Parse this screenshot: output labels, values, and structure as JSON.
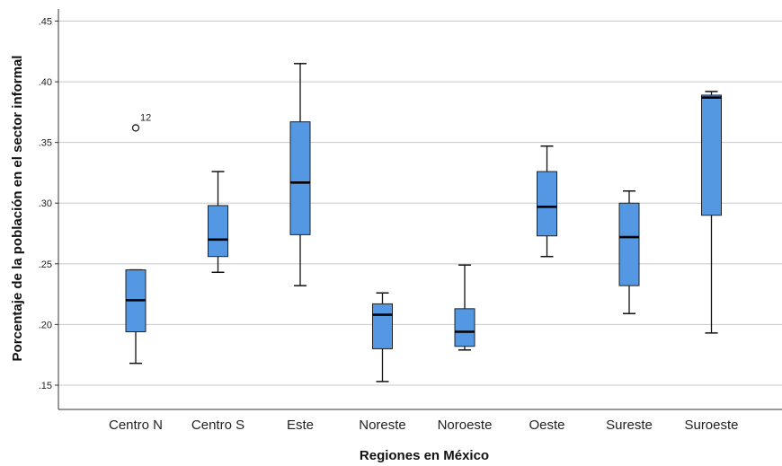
{
  "chart_data": {
    "type": "boxplot",
    "xlabel": "Regiones en México",
    "ylabel": "Porcentaje de la población en el sector informal",
    "ylim": [
      0.13,
      0.46
    ],
    "yticks": [
      0.15,
      0.2,
      0.25,
      0.3,
      0.35,
      0.4,
      0.45
    ],
    "ytick_labels": [
      ".15",
      ".20",
      ".25",
      ".30",
      ".35",
      ".40",
      ".45"
    ],
    "grid": "horizontal",
    "box_color": "#5497e3",
    "categories": [
      "Centro N",
      "Centro S",
      "Este",
      "Noreste",
      "Noroeste",
      "Oeste",
      "Sureste",
      "Suroeste"
    ],
    "boxes": [
      {
        "category": "Centro N",
        "min": 0.168,
        "q1": 0.194,
        "median": 0.22,
        "q3": 0.245,
        "max": 0.245
      },
      {
        "category": "Centro S",
        "min": 0.243,
        "q1": 0.256,
        "median": 0.27,
        "q3": 0.298,
        "max": 0.326
      },
      {
        "category": "Este",
        "min": 0.232,
        "q1": 0.274,
        "median": 0.317,
        "q3": 0.367,
        "max": 0.415
      },
      {
        "category": "Noreste",
        "min": 0.153,
        "q1": 0.18,
        "median": 0.208,
        "q3": 0.217,
        "max": 0.226
      },
      {
        "category": "Noroeste",
        "min": 0.179,
        "q1": 0.182,
        "median": 0.194,
        "q3": 0.213,
        "max": 0.249
      },
      {
        "category": "Oeste",
        "min": 0.256,
        "q1": 0.273,
        "median": 0.297,
        "q3": 0.326,
        "max": 0.347
      },
      {
        "category": "Sureste",
        "min": 0.209,
        "q1": 0.232,
        "median": 0.272,
        "q3": 0.3,
        "max": 0.31
      },
      {
        "category": "Suroeste",
        "min": 0.193,
        "q1": 0.29,
        "median": 0.387,
        "q3": 0.389,
        "max": 0.392
      }
    ],
    "outliers": [
      {
        "category": "Centro N",
        "value": 0.362,
        "label": "12"
      }
    ]
  }
}
